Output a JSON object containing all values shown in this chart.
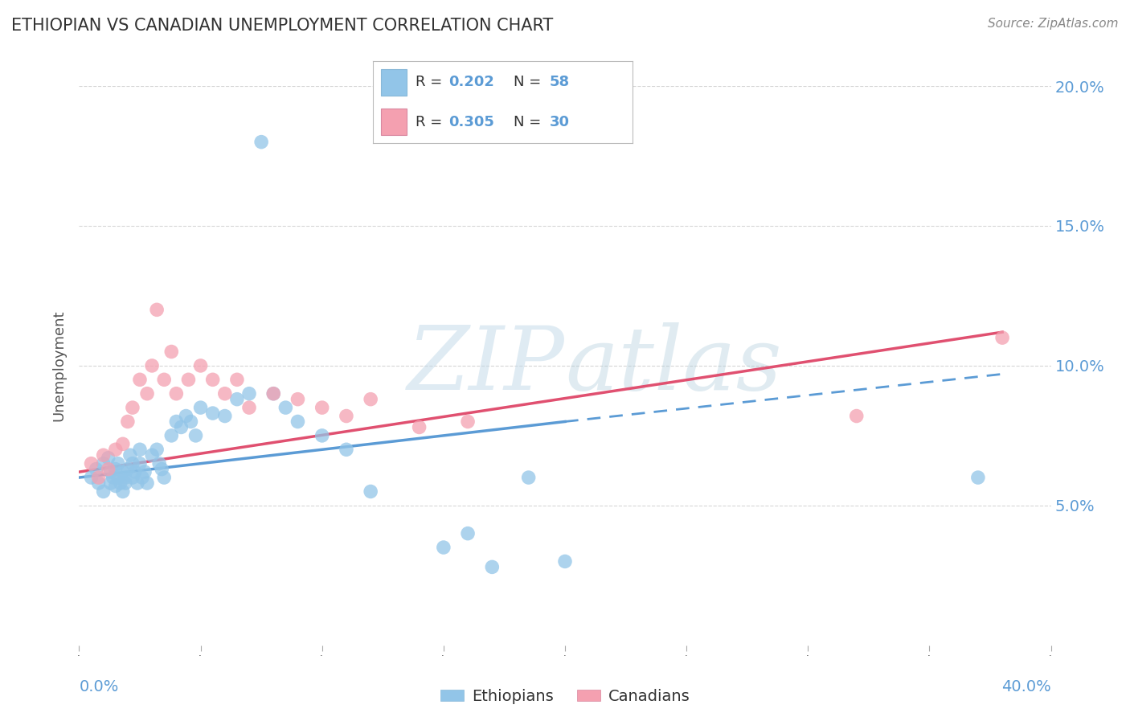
{
  "title": "ETHIOPIAN VS CANADIAN UNEMPLOYMENT CORRELATION CHART",
  "source": "Source: ZipAtlas.com",
  "ylabel": "Unemployment",
  "legend_ethiopians": "Ethiopians",
  "legend_canadians": "Canadians",
  "legend_r_eth": "R = 0.202",
  "legend_n_eth": "N = 58",
  "legend_r_can": "R = 0.305",
  "legend_n_can": "N = 30",
  "eth_color": "#92C5E8",
  "can_color": "#F4A0B0",
  "eth_trend_color": "#5B9BD5",
  "can_trend_color": "#E05070",
  "watermark": "ZIPAtlas",
  "watermark_color": "#C8DFF0",
  "xlim": [
    0.0,
    0.4
  ],
  "ylim": [
    0.0,
    0.2
  ],
  "yticks": [
    0.05,
    0.1,
    0.15,
    0.2
  ],
  "ytick_labels": [
    "5.0%",
    "10.0%",
    "15.0%",
    "20.0%"
  ],
  "eth_x": [
    0.005,
    0.007,
    0.008,
    0.01,
    0.01,
    0.012,
    0.013,
    0.013,
    0.014,
    0.015,
    0.015,
    0.016,
    0.016,
    0.017,
    0.018,
    0.018,
    0.019,
    0.019,
    0.02,
    0.021,
    0.022,
    0.022,
    0.023,
    0.024,
    0.025,
    0.025,
    0.026,
    0.027,
    0.028,
    0.03,
    0.032,
    0.033,
    0.034,
    0.035,
    0.038,
    0.04,
    0.042,
    0.044,
    0.046,
    0.048,
    0.05,
    0.055,
    0.06,
    0.065,
    0.07,
    0.075,
    0.08,
    0.085,
    0.09,
    0.1,
    0.11,
    0.12,
    0.15,
    0.16,
    0.17,
    0.185,
    0.2,
    0.37
  ],
  "eth_y": [
    0.06,
    0.063,
    0.058,
    0.065,
    0.055,
    0.067,
    0.062,
    0.058,
    0.06,
    0.063,
    0.057,
    0.065,
    0.06,
    0.058,
    0.055,
    0.062,
    0.06,
    0.058,
    0.063,
    0.068,
    0.065,
    0.06,
    0.062,
    0.058,
    0.07,
    0.065,
    0.06,
    0.062,
    0.058,
    0.068,
    0.07,
    0.065,
    0.063,
    0.06,
    0.075,
    0.08,
    0.078,
    0.082,
    0.08,
    0.075,
    0.085,
    0.083,
    0.082,
    0.088,
    0.09,
    0.18,
    0.09,
    0.085,
    0.08,
    0.075,
    0.07,
    0.055,
    0.035,
    0.04,
    0.028,
    0.06,
    0.03,
    0.06
  ],
  "can_x": [
    0.005,
    0.008,
    0.01,
    0.012,
    0.015,
    0.018,
    0.02,
    0.022,
    0.025,
    0.028,
    0.03,
    0.032,
    0.035,
    0.038,
    0.04,
    0.045,
    0.05,
    0.055,
    0.06,
    0.065,
    0.07,
    0.08,
    0.09,
    0.1,
    0.11,
    0.12,
    0.14,
    0.16,
    0.32,
    0.38
  ],
  "can_y": [
    0.065,
    0.06,
    0.068,
    0.063,
    0.07,
    0.072,
    0.08,
    0.085,
    0.095,
    0.09,
    0.1,
    0.12,
    0.095,
    0.105,
    0.09,
    0.095,
    0.1,
    0.095,
    0.09,
    0.095,
    0.085,
    0.09,
    0.088,
    0.085,
    0.082,
    0.088,
    0.078,
    0.08,
    0.082,
    0.11
  ],
  "eth_trend_x0": 0.0,
  "eth_trend_y0": 0.06,
  "eth_trend_x1": 0.2,
  "eth_trend_y1": 0.08,
  "eth_trend_ext_x1": 0.38,
  "eth_trend_ext_y1": 0.097,
  "can_trend_x0": 0.0,
  "can_trend_y0": 0.062,
  "can_trend_x1": 0.38,
  "can_trend_y1": 0.112
}
